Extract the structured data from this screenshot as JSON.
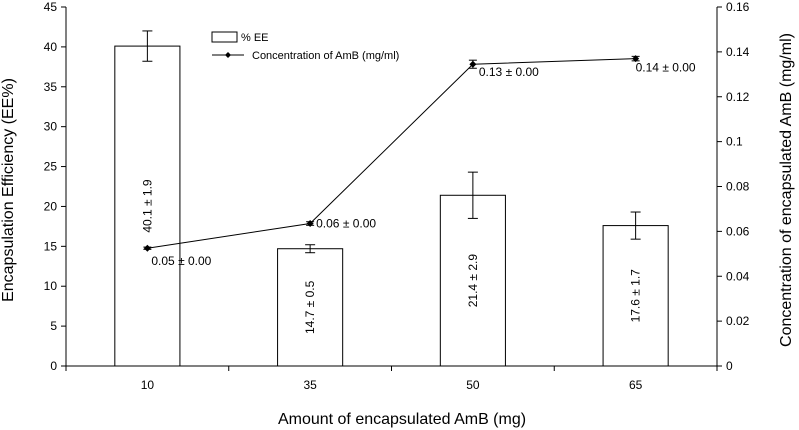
{
  "chart_data": {
    "type": "bar",
    "title": "",
    "xlabel": "Amount of encapsulated AmB (mg)",
    "ylabel": "Encapsulation Efficiency (EE%)",
    "y2label": "Concentration of encapsulated AmB (mg/ml)",
    "categories": [
      "10",
      "35",
      "50",
      "65"
    ],
    "ylim": [
      0,
      45
    ],
    "yticks": [
      "0",
      "5",
      "10",
      "15",
      "20",
      "25",
      "30",
      "35",
      "40",
      "45"
    ],
    "y2lim": [
      0,
      0.16
    ],
    "y2ticks": [
      "0",
      "0.02",
      "0.04",
      "0.06",
      "0.08",
      "0.1",
      "0.12",
      "0.14",
      "0.16"
    ],
    "grid": false,
    "legend_position": "top-left",
    "series": [
      {
        "name": "% EE",
        "type": "bar",
        "axis": "left",
        "values": [
          40.1,
          14.7,
          21.4,
          17.6
        ],
        "errors": [
          1.9,
          0.5,
          2.9,
          1.7
        ],
        "labels": [
          "40.1 ± 1.9",
          "14.7 ± 0.5",
          "21.4 ± 2.9",
          "17.6 ± 1.7"
        ],
        "color": "#ffffff"
      },
      {
        "name": "Concentration  of AmB (mg/ml)",
        "type": "line",
        "axis": "right",
        "values": [
          0.0525,
          0.0635,
          0.1345,
          0.137
        ],
        "errors": [
          0.0005,
          0.0008,
          0.0018,
          0.001
        ],
        "labels": [
          "0.05 ± 0.00",
          "0.06 ± 0.00",
          "0.13 ± 0.00",
          "0.14 ±  0.00"
        ],
        "color": "#000000"
      }
    ]
  }
}
